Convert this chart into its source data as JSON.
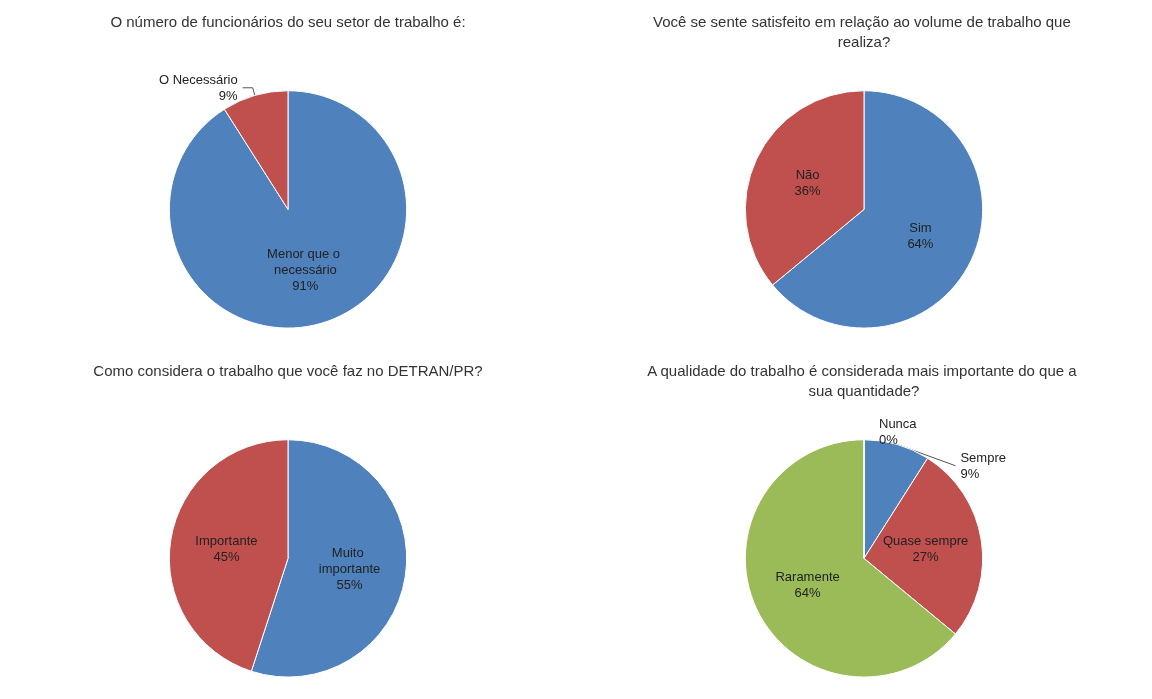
{
  "chart_data": [
    {
      "type": "pie",
      "title": "O número de funcionários do seu setor de trabalho é:",
      "categories": [
        "Menor que o necessário",
        "O Necessário"
      ],
      "values": [
        91,
        9
      ],
      "value_labels": [
        "91%",
        "9%"
      ],
      "colors": [
        "#4f81bd",
        "#c0504d"
      ]
    },
    {
      "type": "pie",
      "title": "Você se sente satisfeito em relação ao volume de trabalho que realiza?",
      "categories": [
        "Sim",
        "Não"
      ],
      "values": [
        64,
        36
      ],
      "value_labels": [
        "64%",
        "36%"
      ],
      "colors": [
        "#4f81bd",
        "#c0504d"
      ]
    },
    {
      "type": "pie",
      "title": "Como considera o trabalho que você faz no DETRAN/PR?",
      "categories": [
        "Muito importante",
        "Importante"
      ],
      "values": [
        55,
        45
      ],
      "value_labels": [
        "55%",
        "45%"
      ],
      "colors": [
        "#4f81bd",
        "#c0504d"
      ]
    },
    {
      "type": "pie",
      "title": "A qualidade do trabalho é considerada mais importante do que a sua quantidade?",
      "categories": [
        "Sempre",
        "Quase sempre",
        "Raramente",
        "Nunca"
      ],
      "values": [
        9,
        27,
        64,
        0
      ],
      "value_labels": [
        "9%",
        "27%",
        "64%",
        "0%"
      ],
      "colors": [
        "#4f81bd",
        "#c0504d",
        "#9bbb59",
        "#8064a2"
      ]
    }
  ]
}
